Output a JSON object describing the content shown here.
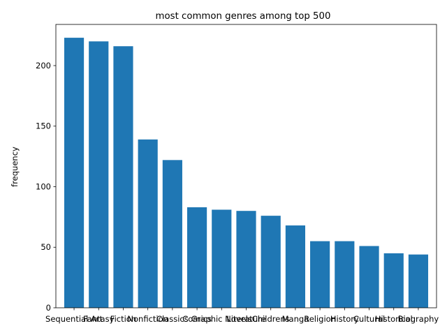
{
  "chart_data": {
    "type": "bar",
    "title": "most common genres among top 500",
    "xlabel": "",
    "ylabel": "frequency",
    "categories": [
      "Sequential Art",
      "Fantasy",
      "Fiction",
      "Nonfiction",
      "Classics",
      "Comics",
      "Graphic Novels",
      "Literature",
      "Childrens",
      "Manga",
      "Religion",
      "History",
      "Cultural",
      "Historical",
      "Biography"
    ],
    "values": [
      223,
      220,
      216,
      139,
      122,
      83,
      81,
      80,
      76,
      68,
      55,
      55,
      51,
      45,
      44
    ],
    "ylim": [
      0,
      234
    ],
    "yticks": [
      0,
      50,
      100,
      150,
      200
    ],
    "bar_color": "#1f77b4",
    "grid": false,
    "legend": "none"
  }
}
